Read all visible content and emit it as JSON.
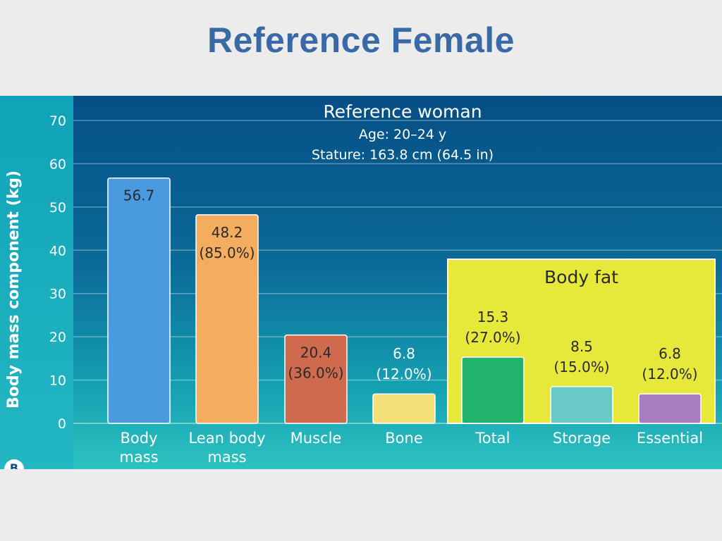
{
  "slide_title": "Reference Female",
  "chart_data": {
    "type": "bar",
    "title": "Reference woman",
    "subtitle_lines": [
      "Age: 20–24 y",
      "Stature: 163.8 cm (64.5 in)"
    ],
    "ylabel": "Body mass component (kg)",
    "xlabel": "",
    "ylim": [
      0,
      70
    ],
    "yticks": [
      0,
      10,
      20,
      30,
      40,
      50,
      60,
      70
    ],
    "categories": [
      [
        "Body",
        "mass"
      ],
      [
        "Lean body",
        "mass"
      ],
      [
        "Muscle"
      ],
      [
        "Bone"
      ],
      [
        "Total"
      ],
      [
        "Storage"
      ],
      [
        "Essential"
      ]
    ],
    "values": [
      56.7,
      48.2,
      20.4,
      6.8,
      15.3,
      8.5,
      6.8
    ],
    "data_labels": [
      [
        "56.7"
      ],
      [
        "48.2",
        "(85.0%)"
      ],
      [
        "20.4",
        "(36.0%)"
      ],
      [
        "6.8",
        "(12.0%)"
      ],
      [
        "15.3",
        "(27.0%)"
      ],
      [
        "8.5",
        "(15.0%)"
      ],
      [
        "6.8",
        "(12.0%)"
      ]
    ],
    "bar_colors": [
      "#4a9ae0",
      "#f4ad5e",
      "#d06a4e",
      "#f6e07a",
      "#22b26e",
      "#6ac9c6",
      "#a77cc0"
    ],
    "group_box": {
      "label": "Body fat",
      "categories": [
        "Total",
        "Storage",
        "Essential"
      ],
      "color": "#e6e83a"
    },
    "grid": true,
    "panel_logo": "B"
  }
}
